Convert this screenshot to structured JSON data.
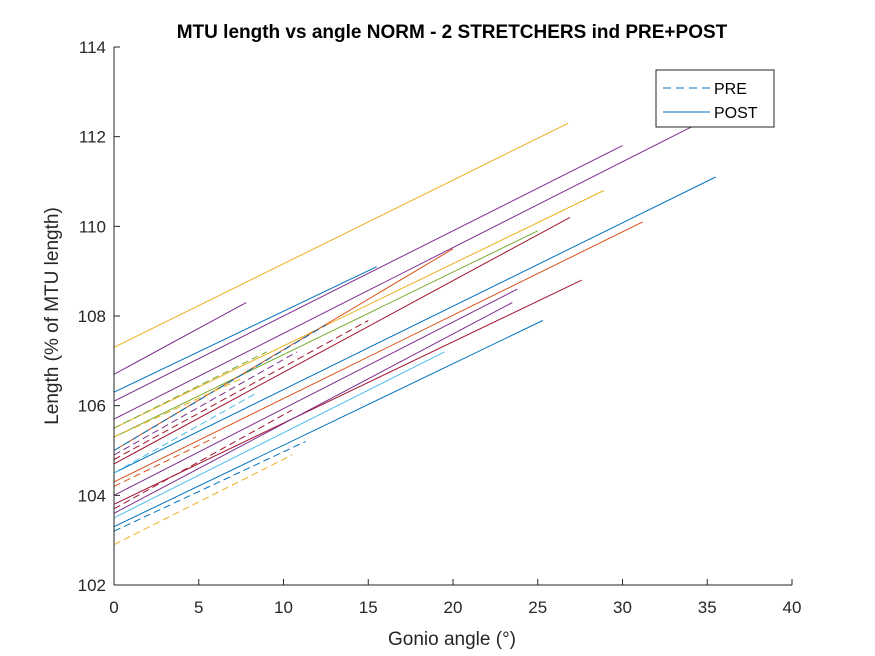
{
  "chart_data": {
    "type": "line",
    "title": "MTU length vs angle NORM - 2 STRETCHERS ind PRE+POST",
    "xlabel": "Gonio angle (°)",
    "ylabel": "Length (% of MTU length)",
    "xlim": [
      0,
      40
    ],
    "ylim": [
      102,
      114
    ],
    "xticks": [
      0,
      5,
      10,
      15,
      20,
      25,
      30,
      35,
      40
    ],
    "yticks": [
      102,
      104,
      106,
      108,
      110,
      112,
      114
    ],
    "grid": false,
    "legend": {
      "placement": "top-right",
      "entries": [
        {
          "label": "PRE",
          "style": "dashed"
        },
        {
          "label": "POST",
          "style": "solid"
        }
      ]
    },
    "series": [
      {
        "style": "solid",
        "color": "#EDB120",
        "x": [
          0,
          26.8
        ],
        "y": [
          107.3,
          112.3
        ]
      },
      {
        "style": "solid",
        "color": "#7E2F8E",
        "x": [
          0,
          7.8
        ],
        "y": [
          106.7,
          108.3
        ]
      },
      {
        "style": "solid",
        "color": "#0072BD",
        "x": [
          0,
          15.5
        ],
        "y": [
          106.3,
          109.1
        ]
      },
      {
        "style": "solid",
        "color": "#7E2F8E",
        "x": [
          0,
          30.0
        ],
        "y": [
          106.1,
          111.8
        ]
      },
      {
        "style": "solid",
        "color": "#7E2F8E",
        "x": [
          0,
          34.5
        ],
        "y": [
          105.7,
          112.3
        ]
      },
      {
        "style": "solid",
        "color": "#EDB120",
        "x": [
          0,
          28.9
        ],
        "y": [
          105.5,
          110.8
        ]
      },
      {
        "style": "solid",
        "color": "#77AC30",
        "x": [
          0,
          25.0
        ],
        "y": [
          105.3,
          109.9
        ]
      },
      {
        "style": "solid",
        "color": "#D95319",
        "x": [
          0,
          20.0
        ],
        "y": [
          105.0,
          109.5
        ]
      },
      {
        "style": "solid",
        "color": "#A2142F",
        "x": [
          0,
          26.9
        ],
        "y": [
          104.7,
          110.2
        ]
      },
      {
        "style": "solid",
        "color": "#0072BD",
        "x": [
          0,
          35.5
        ],
        "y": [
          104.5,
          111.1
        ]
      },
      {
        "style": "solid",
        "color": "#D95319",
        "x": [
          0,
          31.2
        ],
        "y": [
          104.3,
          110.1
        ]
      },
      {
        "style": "solid",
        "color": "#7E2F8E",
        "x": [
          0,
          23.8
        ],
        "y": [
          104.0,
          108.6
        ]
      },
      {
        "style": "solid",
        "color": "#A2142F",
        "x": [
          0,
          27.6
        ],
        "y": [
          103.8,
          108.8
        ]
      },
      {
        "style": "solid",
        "color": "#7E2F8E",
        "x": [
          0,
          23.5
        ],
        "y": [
          103.6,
          108.3
        ]
      },
      {
        "style": "solid",
        "color": "#4DBEEE",
        "x": [
          0,
          19.5
        ],
        "y": [
          103.5,
          107.2
        ]
      },
      {
        "style": "solid",
        "color": "#0072BD",
        "x": [
          0,
          25.3
        ],
        "y": [
          103.3,
          107.9
        ]
      },
      {
        "style": "dashed",
        "color": "#0072BD",
        "x": [
          0,
          12.5
        ],
        "y": [
          105.0,
          107.8
        ]
      },
      {
        "style": "dashed",
        "color": "#7E2F8E",
        "x": [
          0,
          10.8
        ],
        "y": [
          104.9,
          107.2
        ]
      },
      {
        "style": "dashed",
        "color": "#A2142F",
        "x": [
          0,
          15.0
        ],
        "y": [
          104.8,
          107.9
        ]
      },
      {
        "style": "dashed",
        "color": "#77AC30",
        "x": [
          0,
          9.0
        ],
        "y": [
          105.5,
          107.2
        ]
      },
      {
        "style": "dashed",
        "color": "#EDB120",
        "x": [
          0,
          7.5
        ],
        "y": [
          105.3,
          106.6
        ]
      },
      {
        "style": "dashed",
        "color": "#4DBEEE",
        "x": [
          0,
          8.5
        ],
        "y": [
          104.5,
          106.3
        ]
      },
      {
        "style": "dashed",
        "color": "#D95319",
        "x": [
          0,
          6.0
        ],
        "y": [
          104.2,
          105.3
        ]
      },
      {
        "style": "dashed",
        "color": "#A2142F",
        "x": [
          0,
          10.5
        ],
        "y": [
          103.7,
          105.9
        ]
      },
      {
        "style": "dashed",
        "color": "#0072BD",
        "x": [
          0,
          11.3
        ],
        "y": [
          103.2,
          105.2
        ]
      },
      {
        "style": "dashed",
        "color": "#EDB120",
        "x": [
          0,
          10.5
        ],
        "y": [
          102.9,
          104.9
        ]
      }
    ]
  }
}
